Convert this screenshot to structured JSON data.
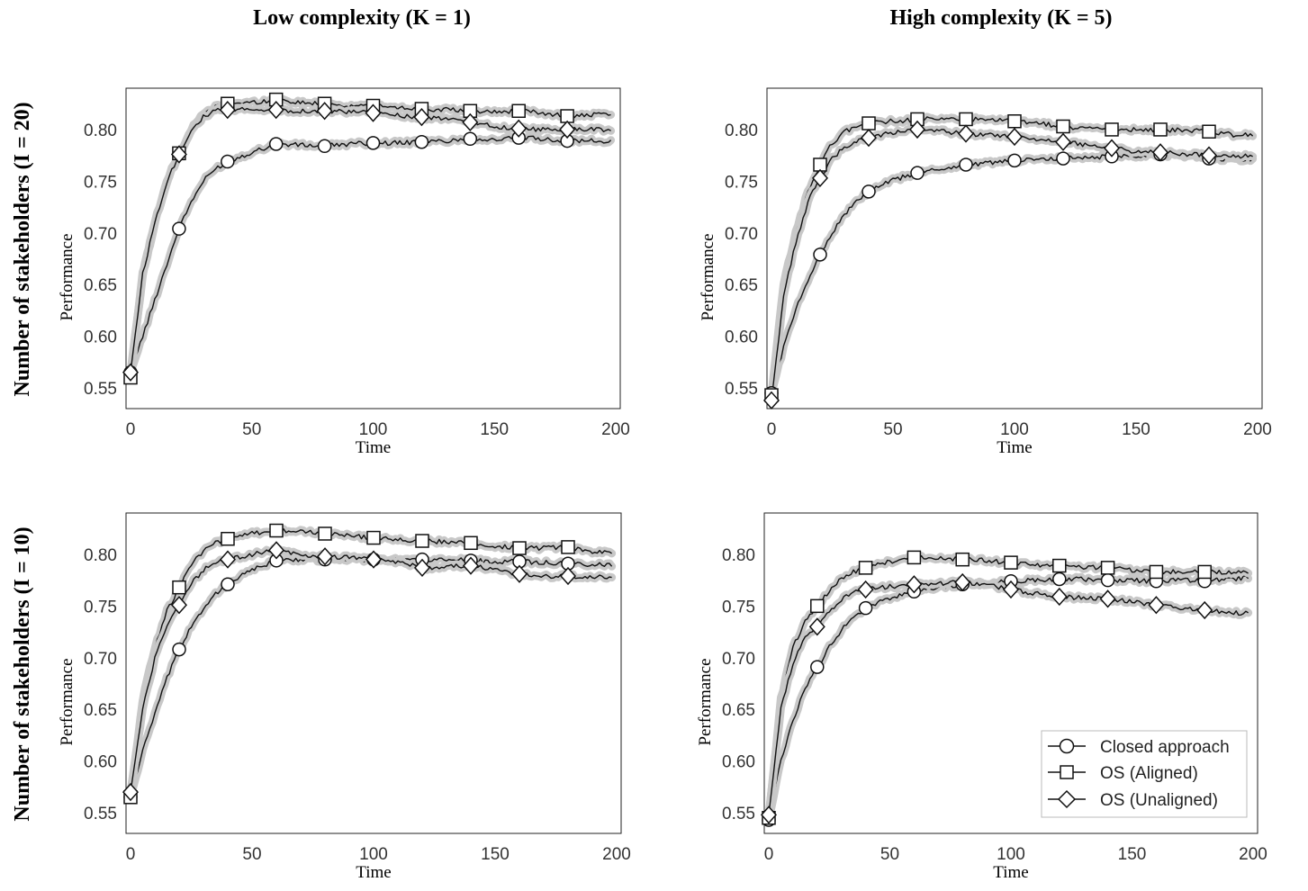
{
  "column_titles": [
    "Low complexity (K = 1)",
    "High complexity (K = 5)"
  ],
  "row_titles": [
    "Number of stakeholders (I = 20)",
    "Number of stakeholders (I = 10)"
  ],
  "legend": [
    {
      "label": "Closed approach",
      "marker": "circle"
    },
    {
      "label": "OS (Aligned)",
      "marker": "square"
    },
    {
      "label": "OS (Unaligned)",
      "marker": "diamond"
    }
  ],
  "colors": {
    "line": "#111111",
    "band": "#c8c8c8",
    "marker_fill": "#ffffff"
  },
  "chart_data": [
    {
      "type": "line",
      "xlabel": "Time",
      "ylabel": "Performance",
      "xlim": [
        0,
        200
      ],
      "ylim": [
        0.53,
        0.84
      ],
      "xticks": [
        0,
        50,
        100,
        150,
        200
      ],
      "yticks": [
        0.55,
        0.6,
        0.65,
        0.7,
        0.75,
        0.8
      ],
      "x": [
        0,
        5,
        10,
        15,
        20,
        25,
        30,
        35,
        40,
        50,
        60,
        70,
        80,
        90,
        100,
        110,
        120,
        130,
        140,
        150,
        160,
        170,
        180,
        190,
        198
      ],
      "series": [
        {
          "name": "Closed approach",
          "marker": "circle",
          "values": [
            0.565,
            0.6,
            0.635,
            0.67,
            0.704,
            0.73,
            0.75,
            0.762,
            0.769,
            0.778,
            0.786,
            0.785,
            0.784,
            0.786,
            0.787,
            0.787,
            0.788,
            0.789,
            0.791,
            0.79,
            0.792,
            0.791,
            0.789,
            0.789,
            0.788
          ]
        },
        {
          "name": "OS (Aligned)",
          "marker": "square",
          "values": [
            0.56,
            0.66,
            0.71,
            0.75,
            0.777,
            0.8,
            0.815,
            0.822,
            0.825,
            0.826,
            0.829,
            0.826,
            0.825,
            0.823,
            0.823,
            0.821,
            0.82,
            0.819,
            0.818,
            0.817,
            0.818,
            0.816,
            0.813,
            0.814,
            0.814
          ]
        },
        {
          "name": "OS (Unaligned)",
          "marker": "diamond",
          "values": [
            0.565,
            0.66,
            0.71,
            0.75,
            0.776,
            0.8,
            0.812,
            0.818,
            0.819,
            0.82,
            0.819,
            0.818,
            0.818,
            0.817,
            0.816,
            0.814,
            0.812,
            0.81,
            0.807,
            0.803,
            0.801,
            0.8,
            0.8,
            0.8,
            0.8
          ]
        }
      ],
      "marker_x": [
        0,
        20,
        40,
        60,
        80,
        100,
        120,
        140,
        160,
        180
      ]
    },
    {
      "type": "line",
      "xlabel": "Time",
      "ylabel": "Performance",
      "xlim": [
        0,
        200
      ],
      "ylim": [
        0.53,
        0.84
      ],
      "xticks": [
        0,
        50,
        100,
        150,
        200
      ],
      "yticks": [
        0.55,
        0.6,
        0.65,
        0.7,
        0.75,
        0.8
      ],
      "x": [
        0,
        5,
        10,
        15,
        20,
        25,
        30,
        35,
        40,
        50,
        60,
        70,
        80,
        90,
        100,
        110,
        120,
        130,
        140,
        150,
        160,
        170,
        180,
        190,
        198
      ],
      "series": [
        {
          "name": "Closed approach",
          "marker": "circle",
          "values": [
            0.545,
            0.59,
            0.625,
            0.655,
            0.679,
            0.7,
            0.718,
            0.73,
            0.74,
            0.751,
            0.758,
            0.762,
            0.766,
            0.768,
            0.77,
            0.771,
            0.772,
            0.773,
            0.774,
            0.775,
            0.776,
            0.775,
            0.772,
            0.771,
            0.77
          ]
        },
        {
          "name": "OS (Aligned)",
          "marker": "square",
          "values": [
            0.543,
            0.65,
            0.7,
            0.74,
            0.766,
            0.787,
            0.798,
            0.803,
            0.806,
            0.808,
            0.81,
            0.81,
            0.81,
            0.809,
            0.808,
            0.806,
            0.803,
            0.801,
            0.8,
            0.8,
            0.8,
            0.799,
            0.798,
            0.795,
            0.795
          ]
        },
        {
          "name": "OS (Unaligned)",
          "marker": "diamond",
          "values": [
            0.538,
            0.64,
            0.69,
            0.73,
            0.753,
            0.772,
            0.783,
            0.789,
            0.792,
            0.797,
            0.8,
            0.798,
            0.796,
            0.795,
            0.793,
            0.791,
            0.788,
            0.785,
            0.782,
            0.779,
            0.778,
            0.776,
            0.775,
            0.774,
            0.774
          ]
        }
      ],
      "marker_x": [
        0,
        20,
        40,
        60,
        80,
        100,
        120,
        140,
        160,
        180
      ]
    },
    {
      "type": "line",
      "xlabel": "Time",
      "ylabel": "Performance",
      "xlim": [
        0,
        200
      ],
      "ylim": [
        0.53,
        0.84
      ],
      "xticks": [
        0,
        50,
        100,
        150,
        200
      ],
      "yticks": [
        0.55,
        0.6,
        0.65,
        0.7,
        0.75,
        0.8
      ],
      "x": [
        0,
        5,
        10,
        15,
        20,
        25,
        30,
        35,
        40,
        50,
        60,
        70,
        80,
        90,
        100,
        110,
        120,
        130,
        140,
        150,
        160,
        170,
        180,
        190,
        198
      ],
      "series": [
        {
          "name": "Closed approach",
          "marker": "circle",
          "values": [
            0.565,
            0.61,
            0.645,
            0.68,
            0.708,
            0.73,
            0.748,
            0.762,
            0.771,
            0.785,
            0.794,
            0.795,
            0.795,
            0.795,
            0.795,
            0.795,
            0.795,
            0.795,
            0.794,
            0.793,
            0.793,
            0.792,
            0.791,
            0.79,
            0.79
          ]
        },
        {
          "name": "OS (Aligned)",
          "marker": "square",
          "values": [
            0.565,
            0.66,
            0.71,
            0.745,
            0.768,
            0.79,
            0.803,
            0.811,
            0.815,
            0.82,
            0.823,
            0.822,
            0.82,
            0.818,
            0.816,
            0.814,
            0.813,
            0.812,
            0.811,
            0.808,
            0.806,
            0.806,
            0.807,
            0.803,
            0.803
          ]
        },
        {
          "name": "OS (Unaligned)",
          "marker": "diamond",
          "values": [
            0.57,
            0.65,
            0.7,
            0.73,
            0.751,
            0.772,
            0.785,
            0.792,
            0.795,
            0.8,
            0.804,
            0.8,
            0.798,
            0.797,
            0.795,
            0.792,
            0.787,
            0.788,
            0.789,
            0.785,
            0.781,
            0.779,
            0.779,
            0.778,
            0.778
          ]
        }
      ],
      "marker_x": [
        0,
        20,
        40,
        60,
        80,
        100,
        120,
        140,
        160,
        180
      ]
    },
    {
      "type": "line",
      "xlabel": "Time",
      "ylabel": "Performance",
      "xlim": [
        0,
        200
      ],
      "ylim": [
        0.53,
        0.84
      ],
      "xticks": [
        0,
        50,
        100,
        150,
        200
      ],
      "yticks": [
        0.55,
        0.6,
        0.65,
        0.7,
        0.75,
        0.8
      ],
      "x": [
        0,
        5,
        10,
        15,
        20,
        25,
        30,
        35,
        40,
        50,
        60,
        70,
        80,
        90,
        100,
        110,
        120,
        130,
        140,
        150,
        160,
        170,
        180,
        190,
        198
      ],
      "series": [
        {
          "name": "Closed approach",
          "marker": "circle",
          "values": [
            0.543,
            0.6,
            0.64,
            0.67,
            0.691,
            0.71,
            0.727,
            0.74,
            0.748,
            0.758,
            0.764,
            0.768,
            0.771,
            0.772,
            0.774,
            0.775,
            0.776,
            0.776,
            0.775,
            0.775,
            0.774,
            0.775,
            0.774,
            0.776,
            0.777
          ]
        },
        {
          "name": "OS (Aligned)",
          "marker": "square",
          "values": [
            0.545,
            0.66,
            0.71,
            0.735,
            0.75,
            0.765,
            0.776,
            0.783,
            0.787,
            0.793,
            0.797,
            0.796,
            0.795,
            0.794,
            0.792,
            0.79,
            0.789,
            0.788,
            0.787,
            0.785,
            0.783,
            0.783,
            0.783,
            0.782,
            0.782
          ]
        },
        {
          "name": "OS (Unaligned)",
          "marker": "diamond",
          "values": [
            0.548,
            0.65,
            0.695,
            0.72,
            0.73,
            0.745,
            0.756,
            0.763,
            0.766,
            0.769,
            0.771,
            0.772,
            0.773,
            0.771,
            0.766,
            0.762,
            0.759,
            0.758,
            0.757,
            0.754,
            0.751,
            0.748,
            0.746,
            0.744,
            0.743
          ]
        }
      ],
      "marker_x": [
        0,
        20,
        40,
        60,
        80,
        100,
        120,
        140,
        160,
        180
      ]
    }
  ]
}
